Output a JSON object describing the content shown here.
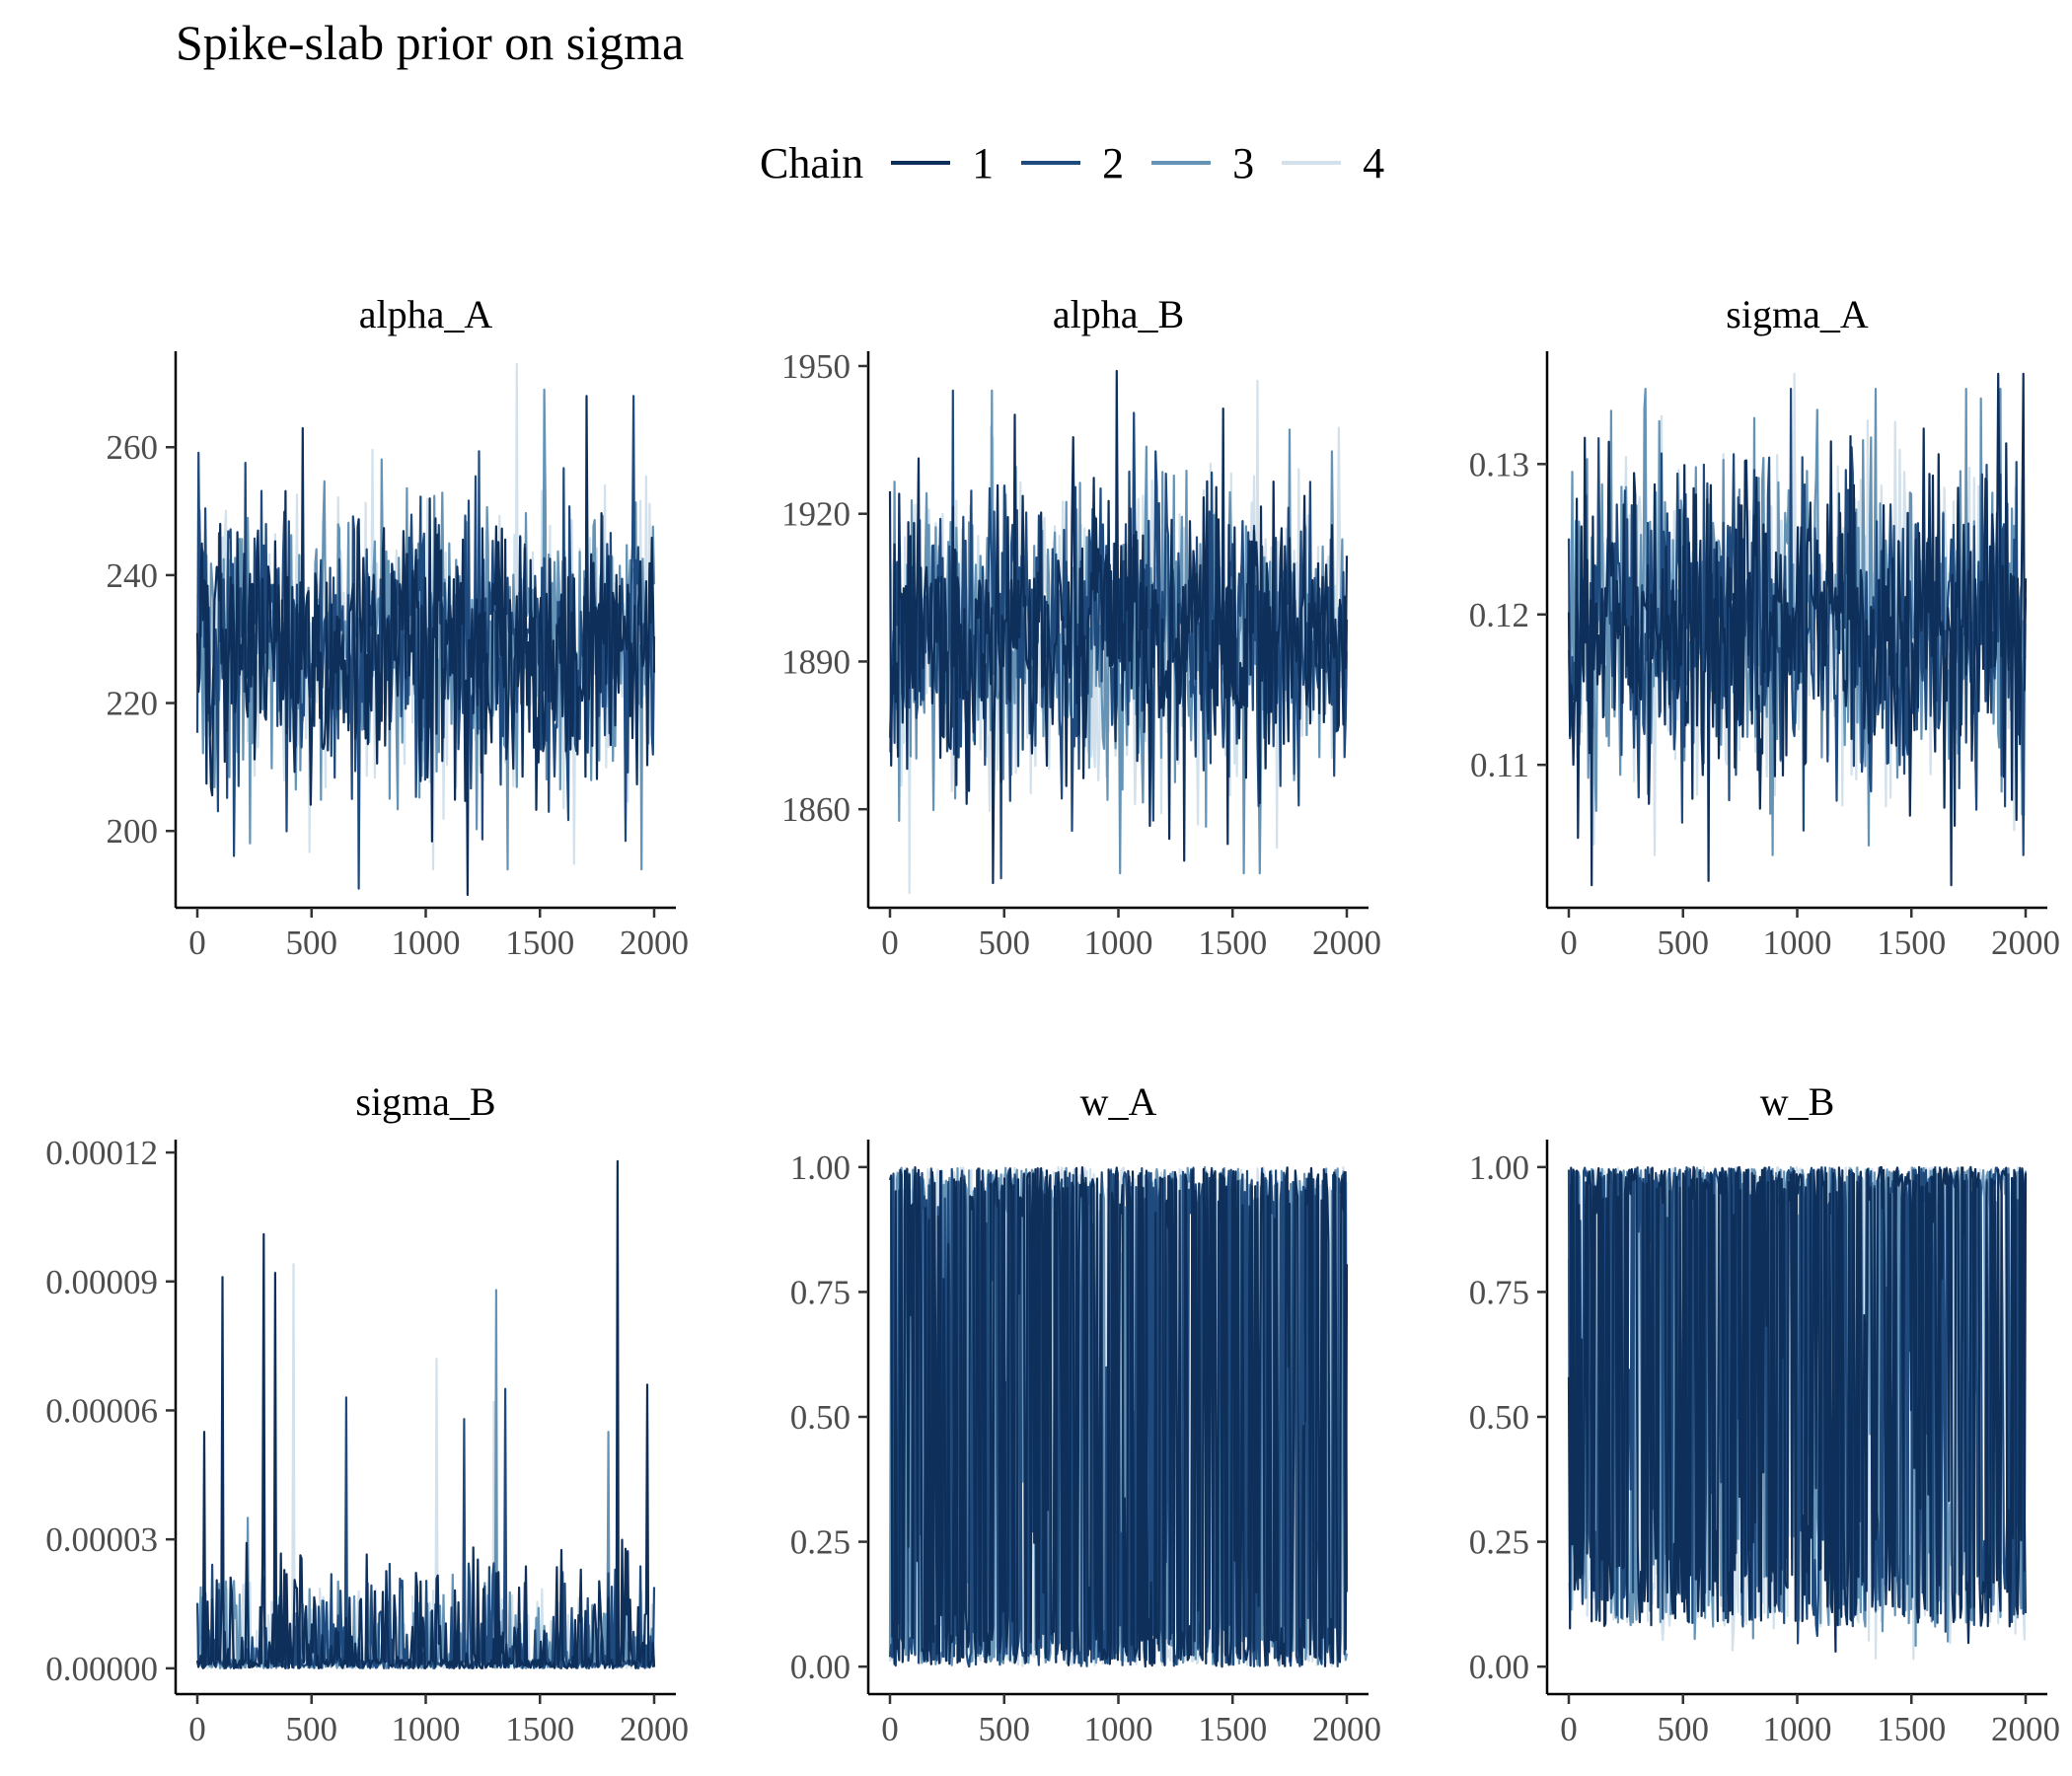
{
  "title": "Spike-slab prior on sigma",
  "legend": {
    "title": "Chain",
    "position": "top",
    "items": [
      {
        "label": "1",
        "color": "#0e2f5a"
      },
      {
        "label": "2",
        "color": "#1f4a7d"
      },
      {
        "label": "3",
        "color": "#6493b6"
      },
      {
        "label": "4",
        "color": "#d2e1ec"
      }
    ]
  },
  "chart_data": [
    {
      "type": "line",
      "title": "alpha_A",
      "grid": false,
      "xlim": [
        0,
        2000
      ],
      "ylim": [
        188,
        275
      ],
      "x_ticks": [
        "0",
        "500",
        "1000",
        "1500",
        "2000"
      ],
      "y_ticks": [
        "200",
        "220",
        "240",
        "260"
      ],
      "y_tick_values": [
        200,
        220,
        240,
        260
      ],
      "iterations": 2000,
      "series": [
        {
          "name": "1",
          "mean": 229,
          "sd": 10.5,
          "min": 190,
          "max": 268
        },
        {
          "name": "2",
          "mean": 229,
          "sd": 10.5,
          "min": 191,
          "max": 268
        },
        {
          "name": "3",
          "mean": 229,
          "sd": 10.5,
          "min": 194,
          "max": 269
        },
        {
          "name": "4",
          "mean": 229,
          "sd": 10.5,
          "min": 194,
          "max": 273
        }
      ]
    },
    {
      "type": "line",
      "title": "alpha_B",
      "grid": false,
      "xlim": [
        0,
        2000
      ],
      "ylim": [
        1840,
        1953
      ],
      "x_ticks": [
        "0",
        "500",
        "1000",
        "1500",
        "2000"
      ],
      "y_ticks": [
        "1860",
        "1890",
        "1920",
        "1950"
      ],
      "y_tick_values": [
        1860,
        1890,
        1920,
        1950
      ],
      "iterations": 2000,
      "series": [
        {
          "name": "1",
          "mean": 1895,
          "sd": 15,
          "min": 1845,
          "max": 1949
        },
        {
          "name": "2",
          "mean": 1895,
          "sd": 15,
          "min": 1846,
          "max": 1945
        },
        {
          "name": "3",
          "mean": 1895,
          "sd": 15,
          "min": 1847,
          "max": 1945
        },
        {
          "name": "4",
          "mean": 1895,
          "sd": 15,
          "min": 1843,
          "max": 1947
        }
      ]
    },
    {
      "type": "line",
      "title": "sigma_A",
      "grid": false,
      "xlim": [
        0,
        2000
      ],
      "ylim": [
        0.1005,
        0.1375
      ],
      "x_ticks": [
        "0",
        "500",
        "1000",
        "1500",
        "2000"
      ],
      "y_ticks": [
        "0.11",
        "0.12",
        "0.13"
      ],
      "y_tick_values": [
        0.11,
        0.12,
        0.13
      ],
      "iterations": 2000,
      "series": [
        {
          "name": "1",
          "mean": 0.1195,
          "sd": 0.0052,
          "min": 0.102,
          "max": 0.136
        },
        {
          "name": "2",
          "mean": 0.1195,
          "sd": 0.0052,
          "min": 0.104,
          "max": 0.135
        },
        {
          "name": "3",
          "mean": 0.1195,
          "sd": 0.0052,
          "min": 0.104,
          "max": 0.135
        },
        {
          "name": "4",
          "mean": 0.1195,
          "sd": 0.0052,
          "min": 0.104,
          "max": 0.136
        }
      ]
    },
    {
      "type": "line",
      "title": "sigma_B",
      "grid": false,
      "xlim": [
        0,
        2000
      ],
      "ylim": [
        -6e-06,
        0.000123
      ],
      "x_ticks": [
        "0",
        "500",
        "1000",
        "1500",
        "2000"
      ],
      "y_ticks": [
        "0.00000",
        "0.00003",
        "0.00006",
        "0.00009",
        "0.00012"
      ],
      "y_tick_values": [
        0,
        3e-05,
        6e-05,
        9e-05,
        0.00012
      ],
      "iterations": 2000,
      "series": [
        {
          "name": "1",
          "typical_max": 3e-05,
          "peaks": [
            [
              30,
              5.5e-05
            ],
            [
              110,
              9.1e-05
            ],
            [
              290,
              0.000101
            ],
            [
              340,
              9.2e-05
            ],
            [
              1840,
              0.000118
            ],
            [
              1970,
              6.6e-05
            ]
          ]
        },
        {
          "name": "2",
          "typical_max": 2.5e-05,
          "peaks": [
            [
              650,
              6.3e-05
            ],
            [
              1350,
              6.5e-05
            ],
            [
              1170,
              5.8e-05
            ]
          ]
        },
        {
          "name": "3",
          "typical_max": 2.2e-05,
          "peaks": [
            [
              1310,
              8.8e-05
            ],
            [
              1800,
              5.5e-05
            ],
            [
              220,
              3.5e-05
            ]
          ]
        },
        {
          "name": "4",
          "typical_max": 2e-05,
          "peaks": [
            [
              420,
              9.4e-05
            ],
            [
              1050,
              7.2e-05
            ],
            [
              1300,
              6.2e-05
            ]
          ]
        }
      ]
    },
    {
      "type": "line",
      "title": "w_A",
      "grid": false,
      "xlim": [
        0,
        2000
      ],
      "ylim": [
        -0.055,
        1.055
      ],
      "x_ticks": [
        "0",
        "500",
        "1000",
        "1500",
        "2000"
      ],
      "y_ticks": [
        "0.00",
        "0.25",
        "0.50",
        "0.75",
        "1.00"
      ],
      "y_tick_values": [
        0,
        0.25,
        0.5,
        0.75,
        1.0
      ],
      "iterations": 2000,
      "series": [
        {
          "name": "1",
          "mean": 0.5,
          "mode": "bimodal"
        },
        {
          "name": "2",
          "mean": 0.5,
          "mode": "bimodal"
        },
        {
          "name": "3",
          "mean": 0.5,
          "mode": "bimodal"
        },
        {
          "name": "4",
          "mean": 0.5,
          "mode": "bimodal"
        }
      ]
    },
    {
      "type": "line",
      "title": "w_B",
      "grid": false,
      "xlim": [
        0,
        2000
      ],
      "ylim": [
        -0.055,
        1.055
      ],
      "x_ticks": [
        "0",
        "500",
        "1000",
        "1500",
        "2000"
      ],
      "y_ticks": [
        "0.00",
        "0.25",
        "0.50",
        "0.75",
        "1.00"
      ],
      "y_tick_values": [
        0,
        0.25,
        0.5,
        0.75,
        1.0
      ],
      "iterations": 2000,
      "series": [
        {
          "name": "1",
          "mean": 0.6,
          "mode": "bimodal"
        },
        {
          "name": "2",
          "mean": 0.6,
          "mode": "bimodal"
        },
        {
          "name": "3",
          "mean": 0.6,
          "mode": "bimodal"
        },
        {
          "name": "4",
          "mean": 0.6,
          "mode": "bimodal"
        }
      ]
    }
  ]
}
